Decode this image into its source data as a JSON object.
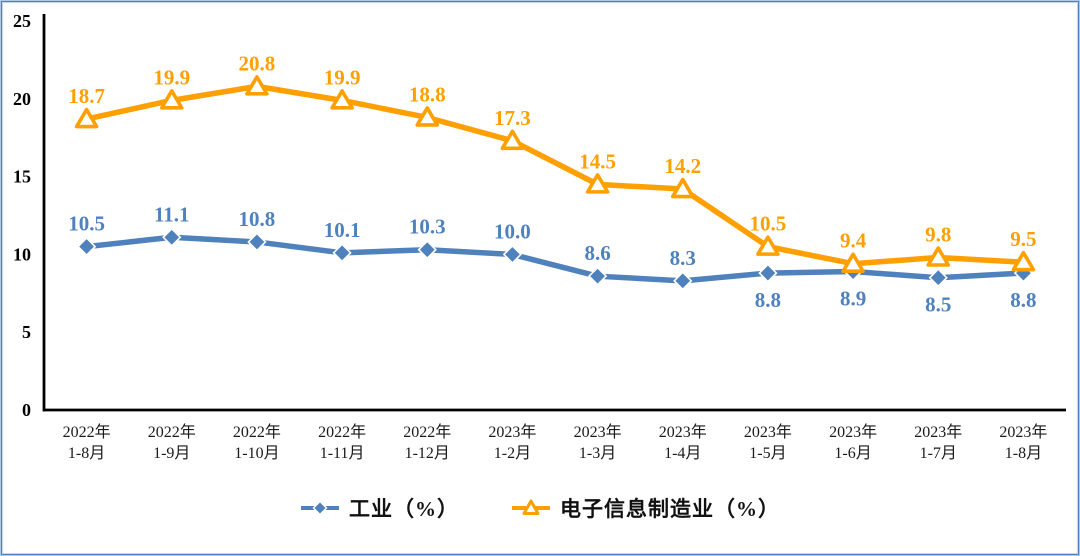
{
  "chart_data": {
    "type": "line",
    "title": "",
    "categories": [
      {
        "year": "2022年",
        "period": "1-8月"
      },
      {
        "year": "2022年",
        "period": "1-9月"
      },
      {
        "year": "2022年",
        "period": "1-10月"
      },
      {
        "year": "2022年",
        "period": "1-11月"
      },
      {
        "year": "2022年",
        "period": "1-12月"
      },
      {
        "year": "2023年",
        "period": "1-2月"
      },
      {
        "year": "2023年",
        "period": "1-3月"
      },
      {
        "year": "2023年",
        "period": "1-4月"
      },
      {
        "year": "2023年",
        "period": "1-5月"
      },
      {
        "year": "2023年",
        "period": "1-6月"
      },
      {
        "year": "2023年",
        "period": "1-7月"
      },
      {
        "year": "2023年",
        "period": "1-8月"
      }
    ],
    "series": [
      {
        "name": "工业（%）",
        "marker": "diamond",
        "color": "#4F81BD",
        "values": [
          10.5,
          11.1,
          10.8,
          10.1,
          10.3,
          10.0,
          8.6,
          8.3,
          8.8,
          8.9,
          8.5,
          8.8
        ],
        "label_positions": [
          "above",
          "above",
          "above",
          "above",
          "above",
          "above",
          "above",
          "above",
          "below",
          "below",
          "below",
          "below"
        ]
      },
      {
        "name": "电子信息制造业（%）",
        "marker": "triangle",
        "color": "#FFA000",
        "values": [
          18.7,
          19.9,
          20.8,
          19.9,
          18.8,
          17.3,
          14.5,
          14.2,
          10.5,
          9.4,
          9.8,
          9.5
        ],
        "label_positions": [
          "above",
          "above",
          "above",
          "above",
          "above",
          "above",
          "above",
          "above",
          "above",
          "above",
          "above",
          "above"
        ]
      }
    ],
    "ylim": [
      0,
      25
    ],
    "yticks": [
      0,
      5,
      10,
      15,
      20,
      25
    ],
    "grid": false,
    "legend_position": "bottom"
  }
}
